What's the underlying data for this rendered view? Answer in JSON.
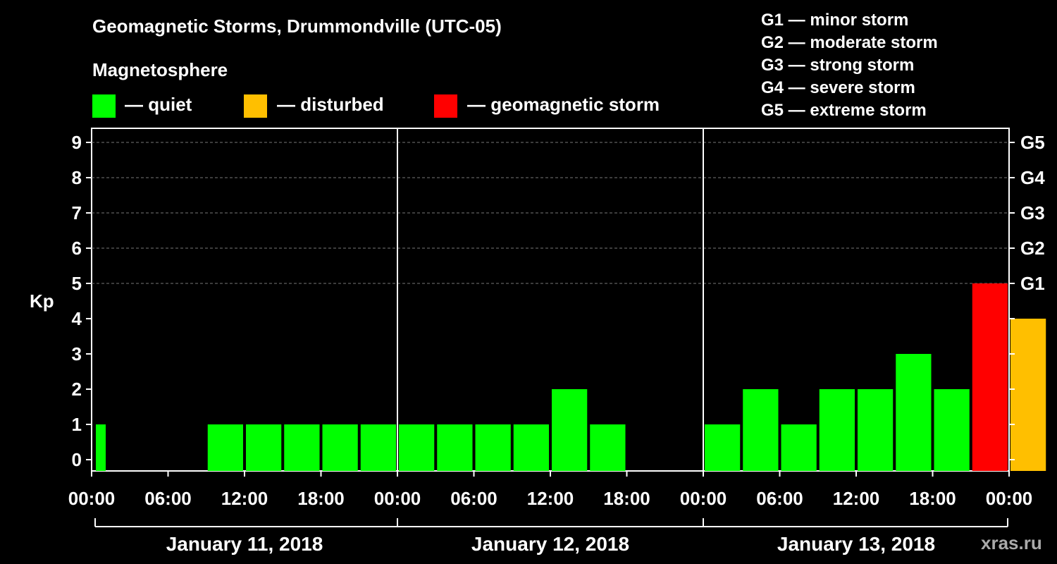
{
  "chart_data": {
    "type": "bar",
    "title": "Geomagnetic Storms, Drummondville (UTC-05)",
    "ylabel": "Kp",
    "ylim": [
      0,
      9
    ],
    "yticks": [
      "0",
      "1",
      "2",
      "3",
      "4",
      "5",
      "6",
      "7",
      "8",
      "9"
    ],
    "right_ticks": [
      {
        "kp": 5,
        "label": "G1"
      },
      {
        "kp": 6,
        "label": "G2"
      },
      {
        "kp": 7,
        "label": "G3"
      },
      {
        "kp": 8,
        "label": "G4"
      },
      {
        "kp": 9,
        "label": "G5"
      }
    ],
    "xticks": [
      "00:00",
      "06:00",
      "12:00",
      "18:00",
      "00:00",
      "06:00",
      "12:00",
      "18:00",
      "00:00",
      "06:00",
      "12:00",
      "18:00",
      "00:00"
    ],
    "days": [
      "January 11, 2018",
      "January 12, 2018",
      "January 13, 2018"
    ],
    "bars": [
      {
        "day": 0,
        "hour": 0,
        "kp": 1,
        "status": "quiet",
        "partial": true
      },
      {
        "day": 0,
        "hour": 3,
        "kp": 0,
        "status": "quiet"
      },
      {
        "day": 0,
        "hour": 6,
        "kp": 0,
        "status": "quiet"
      },
      {
        "day": 0,
        "hour": 9,
        "kp": 1,
        "status": "quiet"
      },
      {
        "day": 0,
        "hour": 12,
        "kp": 1,
        "status": "quiet"
      },
      {
        "day": 0,
        "hour": 15,
        "kp": 1,
        "status": "quiet"
      },
      {
        "day": 0,
        "hour": 18,
        "kp": 1,
        "status": "quiet"
      },
      {
        "day": 0,
        "hour": 21,
        "kp": 1,
        "status": "quiet"
      },
      {
        "day": 1,
        "hour": 0,
        "kp": 1,
        "status": "quiet"
      },
      {
        "day": 1,
        "hour": 3,
        "kp": 1,
        "status": "quiet"
      },
      {
        "day": 1,
        "hour": 6,
        "kp": 1,
        "status": "quiet"
      },
      {
        "day": 1,
        "hour": 9,
        "kp": 1,
        "status": "quiet"
      },
      {
        "day": 1,
        "hour": 12,
        "kp": 2,
        "status": "quiet"
      },
      {
        "day": 1,
        "hour": 15,
        "kp": 1,
        "status": "quiet"
      },
      {
        "day": 1,
        "hour": 18,
        "kp": 0,
        "status": "quiet"
      },
      {
        "day": 1,
        "hour": 21,
        "kp": 0,
        "status": "quiet"
      },
      {
        "day": 2,
        "hour": 0,
        "kp": 1,
        "status": "quiet"
      },
      {
        "day": 2,
        "hour": 3,
        "kp": 2,
        "status": "quiet"
      },
      {
        "day": 2,
        "hour": 6,
        "kp": 1,
        "status": "quiet"
      },
      {
        "day": 2,
        "hour": 9,
        "kp": 2,
        "status": "quiet"
      },
      {
        "day": 2,
        "hour": 12,
        "kp": 2,
        "status": "quiet"
      },
      {
        "day": 2,
        "hour": 15,
        "kp": 3,
        "status": "quiet"
      },
      {
        "day": 2,
        "hour": 18,
        "kp": 2,
        "status": "quiet"
      },
      {
        "day": 2,
        "hour": 21,
        "kp": 5,
        "status": "storm"
      },
      {
        "day": 3,
        "hour": 0,
        "kp": 4,
        "status": "disturbed"
      }
    ],
    "grid": true
  },
  "legend": {
    "title": "Magnetosphere",
    "items": [
      {
        "key": "quiet",
        "label": "— quiet",
        "color": "#00ff00"
      },
      {
        "key": "disturbed",
        "label": "— disturbed",
        "color": "#ffbf00"
      },
      {
        "key": "storm",
        "label": "— geomagnetic storm",
        "color": "#ff0000"
      }
    ]
  },
  "storm_scale": [
    "G1 — minor storm",
    "G2 — moderate storm",
    "G3 — strong storm",
    "G4 — severe storm",
    "G5 — extreme storm"
  ],
  "watermark": "xras.ru"
}
